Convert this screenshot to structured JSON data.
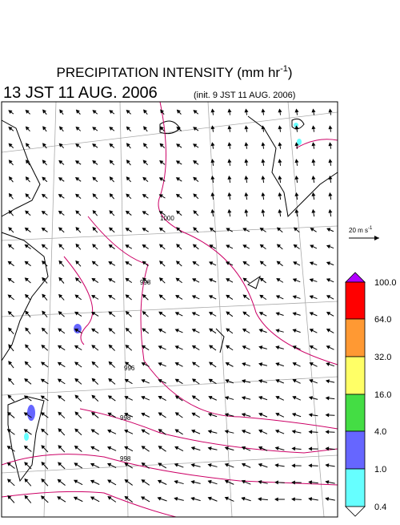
{
  "header": {
    "title": "PRECIPITATION INTENSITY (mm hr",
    "title_exponent": "-1",
    "title_close": ")",
    "valid_time": "13 JST 11 AUG. 2006",
    "init_time": "(init. 9 JST 11 AUG. 2006)"
  },
  "wind_scale": {
    "label": "20 m s",
    "exponent": "-1"
  },
  "contour_labels": [
    "1000",
    "998",
    "996",
    "998",
    "998"
  ],
  "colorbar": {
    "labels": [
      "100.0",
      "64.0",
      "32.0",
      "16.0",
      "4.0",
      "1.0",
      "0.4"
    ]
  }
}
